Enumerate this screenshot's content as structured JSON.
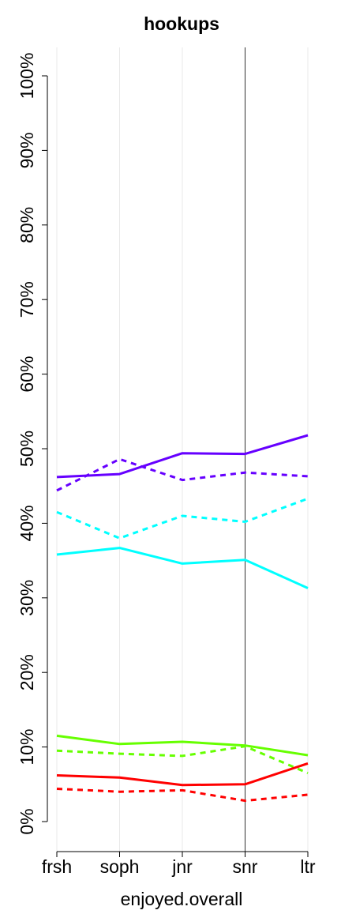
{
  "chart_data": {
    "type": "line",
    "title": "hookups",
    "xlabel": "enjoyed.overall",
    "ylabel": "",
    "categories": [
      "frsh",
      "soph",
      "jnr",
      "snr",
      "ltr"
    ],
    "ylim": [
      -3,
      104
    ],
    "y_ticks": [
      0,
      10,
      20,
      30,
      40,
      50,
      60,
      70,
      80,
      90,
      100
    ],
    "y_tick_labels": [
      "0%",
      "10%",
      "20%",
      "30%",
      "40%",
      "50%",
      "60%",
      "70%",
      "80%",
      "90%",
      "100%"
    ],
    "vertical_reference_line_at": "snr",
    "grid": "vertical",
    "legend": "none",
    "series": [
      {
        "color": "#6600ff",
        "style": "solid",
        "values": [
          46.2,
          46.6,
          49.4,
          49.3,
          51.8
        ]
      },
      {
        "color": "#6600ff",
        "style": "dashed",
        "values": [
          44.4,
          48.6,
          45.8,
          46.8,
          46.3
        ]
      },
      {
        "color": "#00ffff",
        "style": "dashed",
        "values": [
          41.5,
          38.0,
          41.0,
          40.2,
          43.3
        ]
      },
      {
        "color": "#00ffff",
        "style": "solid",
        "values": [
          35.8,
          36.7,
          34.6,
          35.1,
          31.3
        ]
      },
      {
        "color": "#66ff00",
        "style": "solid",
        "values": [
          11.5,
          10.4,
          10.7,
          10.2,
          8.9
        ]
      },
      {
        "color": "#66ff00",
        "style": "dashed",
        "values": [
          9.5,
          9.1,
          8.8,
          10.1,
          6.5
        ]
      },
      {
        "color": "#ff0000",
        "style": "solid",
        "values": [
          6.2,
          5.9,
          4.9,
          5.0,
          7.8
        ]
      },
      {
        "color": "#ff0000",
        "style": "dashed",
        "values": [
          4.4,
          4.0,
          4.2,
          2.8,
          3.6
        ]
      }
    ]
  }
}
